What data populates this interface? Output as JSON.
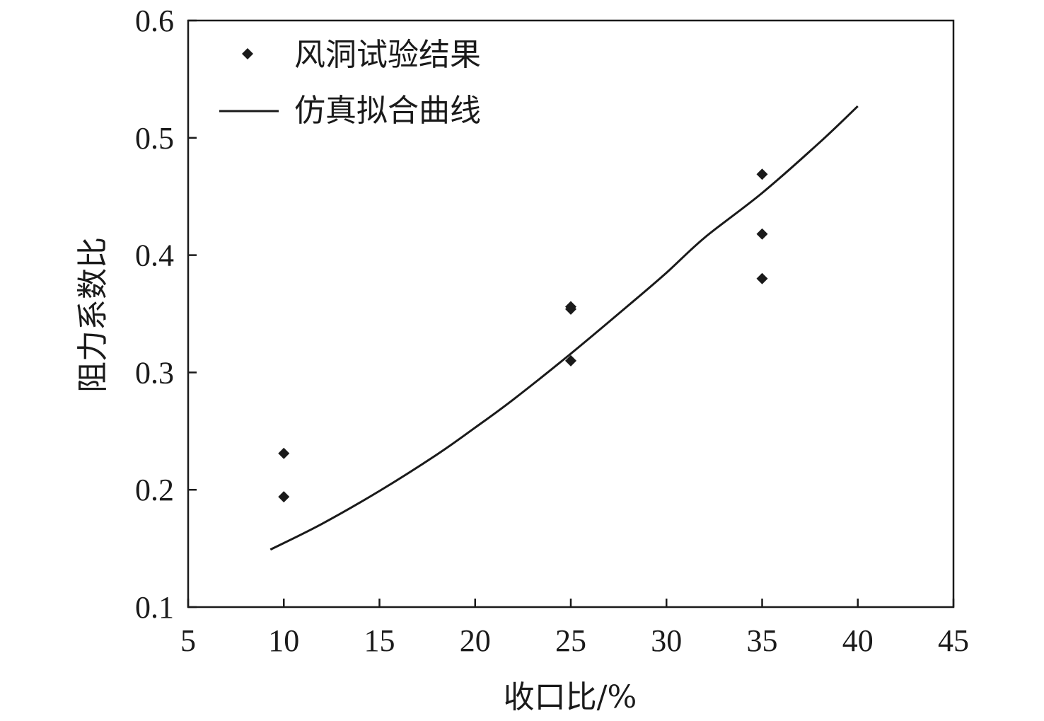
{
  "chart_data": {
    "type": "scatter",
    "xlabel": "收口比/%",
    "ylabel": "阻力系数比",
    "xlim": [
      5,
      45
    ],
    "ylim": [
      0.1,
      0.6
    ],
    "xticks": [
      "5",
      "10",
      "15",
      "20",
      "25",
      "30",
      "35",
      "40",
      "45"
    ],
    "yticks": [
      "0.1",
      "0.2",
      "0.3",
      "0.4",
      "0.5",
      "0.6"
    ],
    "grid": false,
    "legend_position": "top-left",
    "series": [
      {
        "name": "风洞试验结果",
        "kind": "scatter",
        "marker": "diamond",
        "points": [
          {
            "x": 10,
            "y": 0.231
          },
          {
            "x": 10,
            "y": 0.194
          },
          {
            "x": 25,
            "y": 0.356
          },
          {
            "x": 25,
            "y": 0.354
          },
          {
            "x": 25,
            "y": 0.31
          },
          {
            "x": 35,
            "y": 0.469
          },
          {
            "x": 35,
            "y": 0.418
          },
          {
            "x": 35,
            "y": 0.38
          }
        ]
      },
      {
        "name": "仿真拟合曲线",
        "kind": "line",
        "points": [
          {
            "x": 9.3,
            "y": 0.149
          },
          {
            "x": 12,
            "y": 0.171
          },
          {
            "x": 15,
            "y": 0.199
          },
          {
            "x": 18,
            "y": 0.23
          },
          {
            "x": 20,
            "y": 0.253
          },
          {
            "x": 22,
            "y": 0.277
          },
          {
            "x": 25,
            "y": 0.316
          },
          {
            "x": 28,
            "y": 0.357
          },
          {
            "x": 30,
            "y": 0.385
          },
          {
            "x": 32,
            "y": 0.415
          },
          {
            "x": 35,
            "y": 0.453
          },
          {
            "x": 38,
            "y": 0.496
          },
          {
            "x": 40,
            "y": 0.527
          }
        ]
      }
    ],
    "colors": {
      "marker": "#1a1a1a",
      "line": "#1a1a1a",
      "axis": "#1a1a1a"
    }
  }
}
